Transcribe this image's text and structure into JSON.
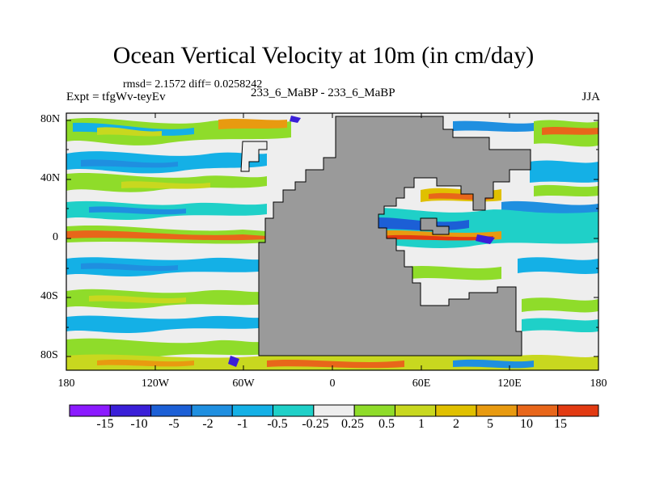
{
  "title": "Ocean Vertical Velocity at 10m (in cm/day)",
  "stats": "rmsd= 2.1572 diff= 0.0258242",
  "experiment": "Expt = tfgWv-teyEv",
  "comparison": "233_6_MaBP - 233_6_MaBP",
  "season": "JJA",
  "lat_labels": [
    "80N",
    "40N",
    "0",
    "40S",
    "80S"
  ],
  "lon_labels": [
    "180",
    "120W",
    "60W",
    "0",
    "60E",
    "120E",
    "180"
  ],
  "colorbar": {
    "colors": [
      "#8b1aff",
      "#3a1fd8",
      "#1c5fd6",
      "#1f8fe0",
      "#14b0e6",
      "#1fd0c8",
      "#eeeeee",
      "#8fdc2a",
      "#c8d81f",
      "#e0c000",
      "#e89a10",
      "#e8661a",
      "#e23a12"
    ],
    "labels": [
      "-15",
      "-10",
      "-5",
      "-2",
      "-1",
      "-0.5",
      "-0.25",
      "0.25",
      "0.5",
      "1",
      "2",
      "5",
      "10",
      "15"
    ]
  },
  "colors": {
    "land": "#9a9a9a",
    "ocean_background": "#eeeeee"
  }
}
